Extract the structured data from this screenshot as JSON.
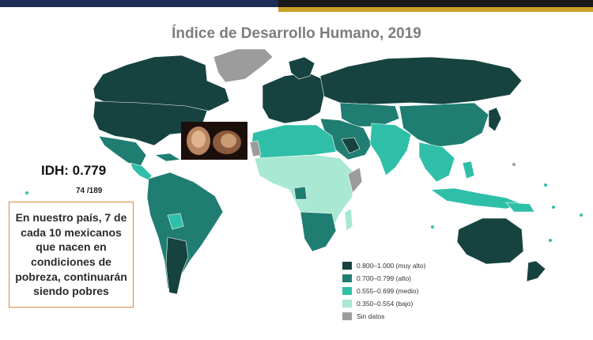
{
  "title": "Índice de Desarrollo Humano, 2019",
  "idh": {
    "label": "IDH:  0.779",
    "rank": "74 /189"
  },
  "note": "En nuestro país, 7 de cada 10 mexicanos que nacen en condiciones de pobreza, continuarán siendo pobres",
  "legend": [
    {
      "label": "0.800–1.000 (muy alto)",
      "color": "#16433f"
    },
    {
      "label": "0.700–0.799 (alto)",
      "color": "#1f7d72"
    },
    {
      "label": "0.555–0.699 (medio)",
      "color": "#2fbfa8"
    },
    {
      "label": "0.350–0.554 (bajo)",
      "color": "#a9e8d3"
    },
    {
      "label": "Sin datos",
      "color": "#9c9c9c"
    }
  ],
  "colors": {
    "muy_alto": "#16433f",
    "alto": "#1f7d72",
    "medio": "#2fbfa8",
    "bajo": "#a9e8d3",
    "sin_datos": "#9c9c9c"
  }
}
